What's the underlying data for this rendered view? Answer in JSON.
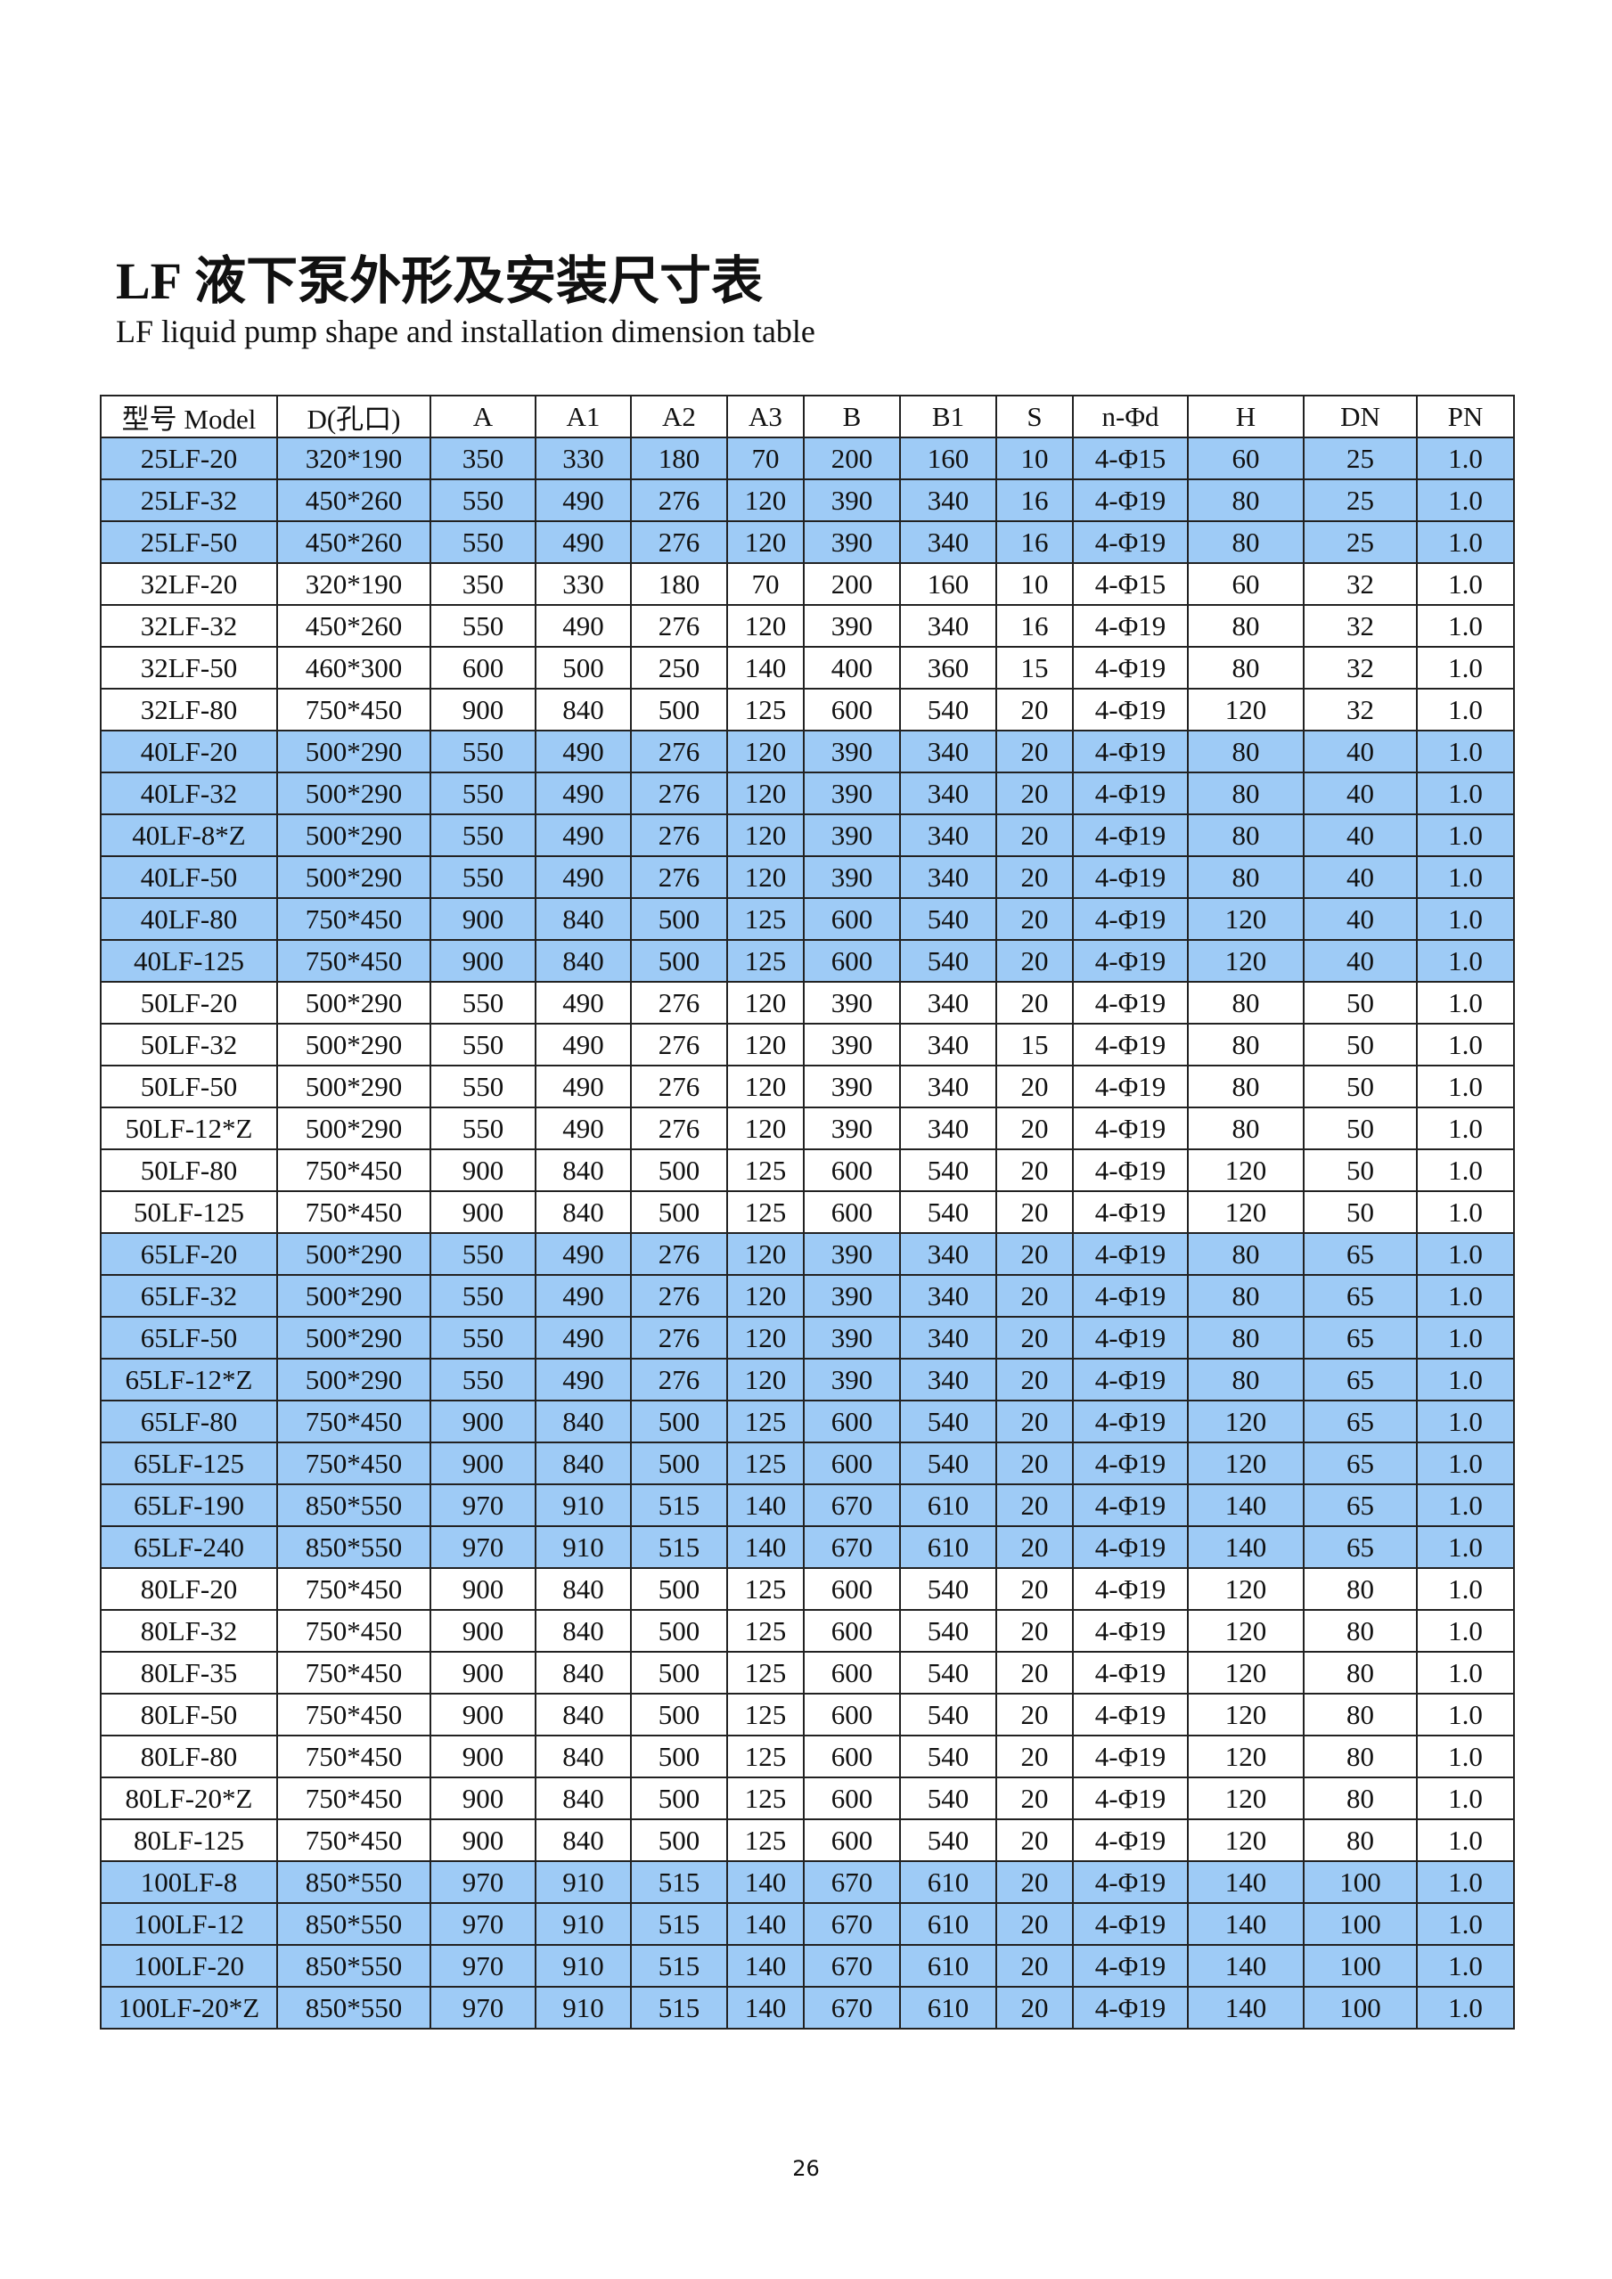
{
  "title_prefix": "LF",
  "title_cn": "液下泵外形及安装尺寸表",
  "subtitle": "LF liquid pump shape and installation dimension table",
  "highlight_color": "#9ECBF6",
  "table": {
    "headers": [
      "型号 Model",
      "D(孔口)",
      "A",
      "A1",
      "A2",
      "A3",
      "B",
      "B1",
      "S",
      "n-Φd",
      "H",
      "DN",
      "PN"
    ],
    "rows": [
      {
        "hl": true,
        "cells": [
          "25LF-20",
          "320*190",
          "350",
          "330",
          "180",
          "70",
          "200",
          "160",
          "10",
          "4-Φ15",
          "60",
          "25",
          "1.0"
        ]
      },
      {
        "hl": true,
        "cells": [
          "25LF-32",
          "450*260",
          "550",
          "490",
          "276",
          "120",
          "390",
          "340",
          "16",
          "4-Φ19",
          "80",
          "25",
          "1.0"
        ]
      },
      {
        "hl": true,
        "cells": [
          "25LF-50",
          "450*260",
          "550",
          "490",
          "276",
          "120",
          "390",
          "340",
          "16",
          "4-Φ19",
          "80",
          "25",
          "1.0"
        ]
      },
      {
        "hl": false,
        "cells": [
          "32LF-20",
          "320*190",
          "350",
          "330",
          "180",
          "70",
          "200",
          "160",
          "10",
          "4-Φ15",
          "60",
          "32",
          "1.0"
        ]
      },
      {
        "hl": false,
        "cells": [
          "32LF-32",
          "450*260",
          "550",
          "490",
          "276",
          "120",
          "390",
          "340",
          "16",
          "4-Φ19",
          "80",
          "32",
          "1.0"
        ]
      },
      {
        "hl": false,
        "cells": [
          "32LF-50",
          "460*300",
          "600",
          "500",
          "250",
          "140",
          "400",
          "360",
          "15",
          "4-Φ19",
          "80",
          "32",
          "1.0"
        ]
      },
      {
        "hl": false,
        "cells": [
          "32LF-80",
          "750*450",
          "900",
          "840",
          "500",
          "125",
          "600",
          "540",
          "20",
          "4-Φ19",
          "120",
          "32",
          "1.0"
        ]
      },
      {
        "hl": true,
        "cells": [
          "40LF-20",
          "500*290",
          "550",
          "490",
          "276",
          "120",
          "390",
          "340",
          "20",
          "4-Φ19",
          "80",
          "40",
          "1.0"
        ]
      },
      {
        "hl": true,
        "cells": [
          "40LF-32",
          "500*290",
          "550",
          "490",
          "276",
          "120",
          "390",
          "340",
          "20",
          "4-Φ19",
          "80",
          "40",
          "1.0"
        ]
      },
      {
        "hl": true,
        "cells": [
          "40LF-8*Z",
          "500*290",
          "550",
          "490",
          "276",
          "120",
          "390",
          "340",
          "20",
          "4-Φ19",
          "80",
          "40",
          "1.0"
        ]
      },
      {
        "hl": true,
        "cells": [
          "40LF-50",
          "500*290",
          "550",
          "490",
          "276",
          "120",
          "390",
          "340",
          "20",
          "4-Φ19",
          "80",
          "40",
          "1.0"
        ]
      },
      {
        "hl": true,
        "cells": [
          "40LF-80",
          "750*450",
          "900",
          "840",
          "500",
          "125",
          "600",
          "540",
          "20",
          "4-Φ19",
          "120",
          "40",
          "1.0"
        ]
      },
      {
        "hl": true,
        "cells": [
          "40LF-125",
          "750*450",
          "900",
          "840",
          "500",
          "125",
          "600",
          "540",
          "20",
          "4-Φ19",
          "120",
          "40",
          "1.0"
        ]
      },
      {
        "hl": false,
        "cells": [
          "50LF-20",
          "500*290",
          "550",
          "490",
          "276",
          "120",
          "390",
          "340",
          "20",
          "4-Φ19",
          "80",
          "50",
          "1.0"
        ]
      },
      {
        "hl": false,
        "cells": [
          "50LF-32",
          "500*290",
          "550",
          "490",
          "276",
          "120",
          "390",
          "340",
          "15",
          "4-Φ19",
          "80",
          "50",
          "1.0"
        ]
      },
      {
        "hl": false,
        "cells": [
          "50LF-50",
          "500*290",
          "550",
          "490",
          "276",
          "120",
          "390",
          "340",
          "20",
          "4-Φ19",
          "80",
          "50",
          "1.0"
        ]
      },
      {
        "hl": false,
        "cells": [
          "50LF-12*Z",
          "500*290",
          "550",
          "490",
          "276",
          "120",
          "390",
          "340",
          "20",
          "4-Φ19",
          "80",
          "50",
          "1.0"
        ]
      },
      {
        "hl": false,
        "cells": [
          "50LF-80",
          "750*450",
          "900",
          "840",
          "500",
          "125",
          "600",
          "540",
          "20",
          "4-Φ19",
          "120",
          "50",
          "1.0"
        ]
      },
      {
        "hl": false,
        "cells": [
          "50LF-125",
          "750*450",
          "900",
          "840",
          "500",
          "125",
          "600",
          "540",
          "20",
          "4-Φ19",
          "120",
          "50",
          "1.0"
        ]
      },
      {
        "hl": true,
        "cells": [
          "65LF-20",
          "500*290",
          "550",
          "490",
          "276",
          "120",
          "390",
          "340",
          "20",
          "4-Φ19",
          "80",
          "65",
          "1.0"
        ]
      },
      {
        "hl": true,
        "cells": [
          "65LF-32",
          "500*290",
          "550",
          "490",
          "276",
          "120",
          "390",
          "340",
          "20",
          "4-Φ19",
          "80",
          "65",
          "1.0"
        ]
      },
      {
        "hl": true,
        "cells": [
          "65LF-50",
          "500*290",
          "550",
          "490",
          "276",
          "120",
          "390",
          "340",
          "20",
          "4-Φ19",
          "80",
          "65",
          "1.0"
        ]
      },
      {
        "hl": true,
        "cells": [
          "65LF-12*Z",
          "500*290",
          "550",
          "490",
          "276",
          "120",
          "390",
          "340",
          "20",
          "4-Φ19",
          "80",
          "65",
          "1.0"
        ]
      },
      {
        "hl": true,
        "cells": [
          "65LF-80",
          "750*450",
          "900",
          "840",
          "500",
          "125",
          "600",
          "540",
          "20",
          "4-Φ19",
          "120",
          "65",
          "1.0"
        ]
      },
      {
        "hl": true,
        "cells": [
          "65LF-125",
          "750*450",
          "900",
          "840",
          "500",
          "125",
          "600",
          "540",
          "20",
          "4-Φ19",
          "120",
          "65",
          "1.0"
        ]
      },
      {
        "hl": true,
        "cells": [
          "65LF-190",
          "850*550",
          "970",
          "910",
          "515",
          "140",
          "670",
          "610",
          "20",
          "4-Φ19",
          "140",
          "65",
          "1.0"
        ]
      },
      {
        "hl": true,
        "cells": [
          "65LF-240",
          "850*550",
          "970",
          "910",
          "515",
          "140",
          "670",
          "610",
          "20",
          "4-Φ19",
          "140",
          "65",
          "1.0"
        ]
      },
      {
        "hl": false,
        "cells": [
          "80LF-20",
          "750*450",
          "900",
          "840",
          "500",
          "125",
          "600",
          "540",
          "20",
          "4-Φ19",
          "120",
          "80",
          "1.0"
        ]
      },
      {
        "hl": false,
        "cells": [
          "80LF-32",
          "750*450",
          "900",
          "840",
          "500",
          "125",
          "600",
          "540",
          "20",
          "4-Φ19",
          "120",
          "80",
          "1.0"
        ]
      },
      {
        "hl": false,
        "cells": [
          "80LF-35",
          "750*450",
          "900",
          "840",
          "500",
          "125",
          "600",
          "540",
          "20",
          "4-Φ19",
          "120",
          "80",
          "1.0"
        ]
      },
      {
        "hl": false,
        "cells": [
          "80LF-50",
          "750*450",
          "900",
          "840",
          "500",
          "125",
          "600",
          "540",
          "20",
          "4-Φ19",
          "120",
          "80",
          "1.0"
        ]
      },
      {
        "hl": false,
        "cells": [
          "80LF-80",
          "750*450",
          "900",
          "840",
          "500",
          "125",
          "600",
          "540",
          "20",
          "4-Φ19",
          "120",
          "80",
          "1.0"
        ]
      },
      {
        "hl": false,
        "cells": [
          "80LF-20*Z",
          "750*450",
          "900",
          "840",
          "500",
          "125",
          "600",
          "540",
          "20",
          "4-Φ19",
          "120",
          "80",
          "1.0"
        ]
      },
      {
        "hl": false,
        "cells": [
          "80LF-125",
          "750*450",
          "900",
          "840",
          "500",
          "125",
          "600",
          "540",
          "20",
          "4-Φ19",
          "120",
          "80",
          "1.0"
        ]
      },
      {
        "hl": true,
        "cells": [
          "100LF-8",
          "850*550",
          "970",
          "910",
          "515",
          "140",
          "670",
          "610",
          "20",
          "4-Φ19",
          "140",
          "100",
          "1.0"
        ]
      },
      {
        "hl": true,
        "cells": [
          "100LF-12",
          "850*550",
          "970",
          "910",
          "515",
          "140",
          "670",
          "610",
          "20",
          "4-Φ19",
          "140",
          "100",
          "1.0"
        ]
      },
      {
        "hl": true,
        "cells": [
          "100LF-20",
          "850*550",
          "970",
          "910",
          "515",
          "140",
          "670",
          "610",
          "20",
          "4-Φ19",
          "140",
          "100",
          "1.0"
        ]
      },
      {
        "hl": true,
        "cells": [
          "100LF-20*Z",
          "850*550",
          "970",
          "910",
          "515",
          "140",
          "670",
          "610",
          "20",
          "4-Φ19",
          "140",
          "100",
          "1.0"
        ]
      }
    ]
  },
  "page_number": "26"
}
